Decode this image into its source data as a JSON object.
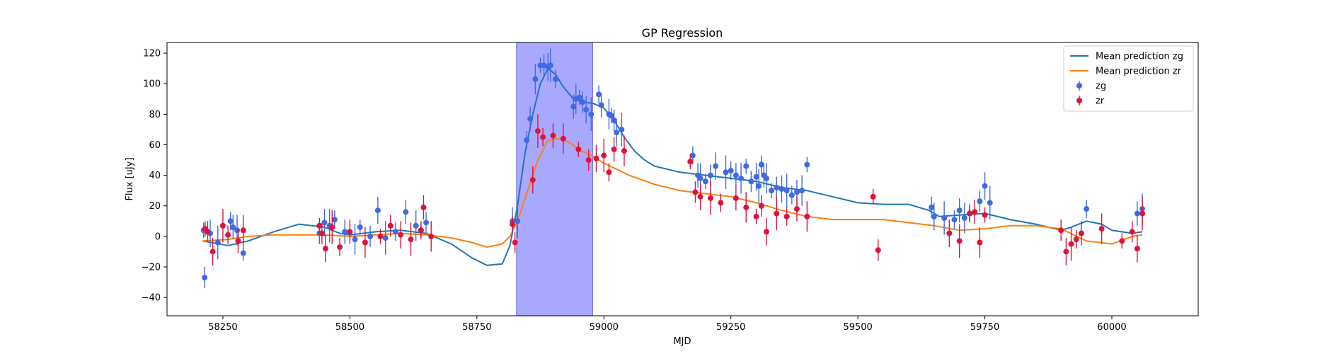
{
  "chart_data": {
    "type": "scatter",
    "title": "GP Regression",
    "xlabel": "MJD",
    "ylabel": "Flux [uJy]",
    "xlim": [
      58140,
      60170
    ],
    "ylim": [
      -52,
      127
    ],
    "xticks": [
      58250,
      58500,
      58750,
      59000,
      59250,
      59500,
      59750,
      60000
    ],
    "yticks": [
      -40,
      -20,
      0,
      20,
      40,
      60,
      80,
      100,
      120
    ],
    "grid": false,
    "legend_placement": "top-right",
    "shaded_region": {
      "x0": 58828,
      "x1": 58978,
      "color": "#a8a8ff"
    },
    "series": [
      {
        "name": "Mean prediction zg",
        "kind": "line",
        "color": "#1f77b4",
        "x": [
          58210,
          58260,
          58300,
          58350,
          58400,
          58450,
          58480,
          58500,
          58550,
          58600,
          58650,
          58700,
          58740,
          58770,
          58800,
          58815,
          58830,
          58845,
          58860,
          58875,
          58890,
          58905,
          58920,
          58940,
          58960,
          58980,
          59000,
          59020,
          59040,
          59060,
          59080,
          59100,
          59150,
          59200,
          59250,
          59300,
          59350,
          59400,
          59450,
          59500,
          59550,
          59600,
          59640,
          59660,
          59700,
          59750,
          59800,
          59850,
          59900,
          59920,
          59950,
          59980,
          60000,
          60040,
          60060
        ],
        "y": [
          -3,
          -6,
          -3,
          3,
          8,
          6,
          2,
          1,
          3,
          4,
          2,
          -5,
          -14,
          -19,
          -18,
          -6,
          20,
          55,
          80,
          100,
          110,
          106,
          98,
          90,
          88,
          87,
          84,
          76,
          65,
          56,
          50,
          46,
          42,
          40,
          38,
          36,
          32,
          30,
          26,
          22,
          21,
          21,
          17,
          13,
          14,
          15,
          11,
          8,
          4,
          6,
          10,
          8,
          4,
          2,
          3
        ]
      },
      {
        "name": "Mean prediction zr",
        "kind": "line",
        "color": "#ff7f0e",
        "x": [
          58210,
          58260,
          58300,
          58350,
          58400,
          58450,
          58500,
          58550,
          58600,
          58650,
          58700,
          58740,
          58770,
          58800,
          58815,
          58830,
          58850,
          58870,
          58890,
          58910,
          58930,
          58950,
          58980,
          59000,
          59050,
          59100,
          59150,
          59200,
          59250,
          59300,
          59350,
          59400,
          59450,
          59500,
          59550,
          59600,
          59650,
          59700,
          59750,
          59800,
          59850,
          59900,
          59950,
          60000,
          60040,
          60060
        ],
        "y": [
          -3,
          -2,
          0,
          1,
          1,
          1,
          0,
          1,
          2,
          1,
          -1,
          -4,
          -7,
          -5,
          0,
          10,
          30,
          50,
          63,
          64,
          62,
          57,
          52,
          48,
          40,
          34,
          30,
          28,
          26,
          22,
          17,
          13,
          11,
          11,
          11,
          9,
          7,
          4,
          5,
          7,
          7,
          5,
          -3,
          -5,
          0,
          1
        ]
      },
      {
        "name": "zg",
        "kind": "scatter",
        "color": "#4169e1",
        "x": [
          58212,
          58214,
          58225,
          58240,
          58265,
          58270,
          58278,
          58290,
          58440,
          58450,
          58460,
          58470,
          58490,
          58510,
          58520,
          58540,
          58555,
          58570,
          58590,
          58610,
          58630,
          58640,
          58650,
          58820,
          58830,
          58848,
          58855,
          58865,
          58875,
          58882,
          58890,
          58895,
          58905,
          58940,
          58945,
          58952,
          58958,
          58965,
          58975,
          58990,
          58995,
          59010,
          59015,
          59020,
          59025,
          59035,
          59175,
          59185,
          59190,
          59200,
          59210,
          59220,
          59240,
          59250,
          59260,
          59270,
          59280,
          59290,
          59300,
          59305,
          59310,
          59315,
          59320,
          59330,
          59340,
          59350,
          59360,
          59370,
          59380,
          59390,
          59400,
          59645,
          59650,
          59670,
          59690,
          59700,
          59710,
          59720,
          59740,
          59750,
          59760,
          59950,
          60050,
          60060
        ],
        "y": [
          4,
          -27,
          2,
          -4,
          10,
          6,
          4,
          -11,
          2,
          9,
          7,
          11,
          3,
          -2,
          6,
          0,
          17,
          -1,
          3,
          16,
          7,
          4,
          9,
          10,
          10,
          63,
          77,
          103,
          112,
          112,
          111,
          112,
          103,
          85,
          90,
          91,
          88,
          83,
          80,
          93,
          86,
          80,
          79,
          76,
          68,
          70,
          53,
          40,
          38,
          36,
          40,
          46,
          42,
          43,
          40,
          38,
          46,
          36,
          39,
          33,
          47,
          40,
          38,
          30,
          32,
          31,
          30,
          27,
          29,
          30,
          47,
          19,
          13,
          12,
          11,
          17,
          12,
          15,
          23,
          33,
          22,
          18,
          15,
          18
        ]
      },
      {
        "name": "zr",
        "kind": "scatter",
        "color": "#dc143c",
        "x": [
          58215,
          58220,
          58230,
          58250,
          58260,
          58280,
          58290,
          58440,
          58445,
          58452,
          58465,
          58480,
          58500,
          58530,
          58560,
          58580,
          58600,
          58620,
          58640,
          58645,
          58660,
          58820,
          58825,
          58860,
          58870,
          58880,
          58900,
          58920,
          58950,
          58970,
          58985,
          59000,
          59010,
          59020,
          59040,
          59170,
          59180,
          59190,
          59210,
          59230,
          59260,
          59280,
          59300,
          59310,
          59320,
          59340,
          59360,
          59380,
          59400,
          59530,
          59540,
          59680,
          59700,
          59720,
          59730,
          59740,
          59750,
          59900,
          59910,
          59920,
          59930,
          59940,
          59980,
          60020,
          60040,
          60050,
          60060
        ],
        "y": [
          5,
          3,
          -10,
          7,
          1,
          -3,
          4,
          7,
          2,
          -8,
          6,
          -7,
          3,
          -4,
          0,
          7,
          1,
          -2,
          4,
          19,
          0,
          8,
          -4,
          37,
          69,
          65,
          66,
          64,
          57,
          50,
          51,
          53,
          42,
          57,
          56,
          49,
          29,
          26,
          25,
          22,
          25,
          19,
          13,
          20,
          3,
          15,
          13,
          18,
          13,
          26,
          -9,
          2,
          -3,
          15,
          16,
          -4,
          14,
          4,
          -10,
          -5,
          -2,
          2,
          5,
          -3,
          3,
          -8,
          15
        ]
      }
    ]
  }
}
